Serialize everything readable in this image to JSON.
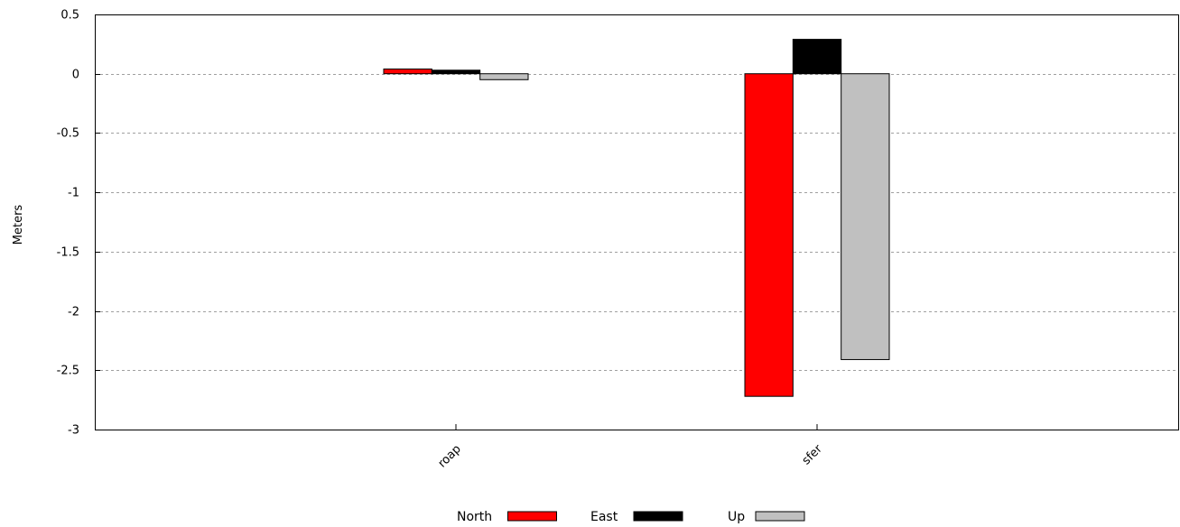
{
  "chart_data": {
    "type": "bar",
    "title": "",
    "xlabel": "",
    "ylabel": "Meters",
    "ylim": [
      -3,
      0.5
    ],
    "yticks": [
      0.5,
      0,
      -0.5,
      -1,
      -1.5,
      -2,
      -2.5,
      -3
    ],
    "ytick_labels": [
      "0.5",
      "0",
      "-0.5",
      "-1",
      "-1.5",
      "-2",
      "-2.5",
      "-3"
    ],
    "categories": [
      "roap",
      "sfer"
    ],
    "series": [
      {
        "name": "North",
        "color": "#ff0000",
        "values": [
          0.04,
          -2.72
        ]
      },
      {
        "name": "East",
        "color": "#000000",
        "values": [
          0.03,
          0.29
        ]
      },
      {
        "name": "Up",
        "color": "#c0c0c0",
        "values": [
          -0.05,
          -2.41
        ]
      }
    ],
    "grid": "horizontal-dashed",
    "legend_placement": "bottom-center"
  }
}
